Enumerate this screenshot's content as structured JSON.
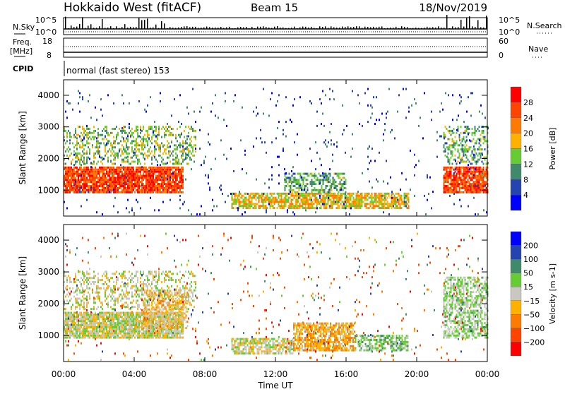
{
  "header": {
    "station": "Hokkaido West (fitACF)",
    "beam": "Beam 15",
    "date": "18/Nov/2019"
  },
  "nsky_panel": {
    "label": "N.Sky",
    "right_label": "N.Search",
    "ticks": [
      "10^5",
      "10^0"
    ],
    "right_ticks": [
      "10^5",
      "10^0"
    ]
  },
  "freq_panel": {
    "label_line1": "Freq.",
    "label_line2": "[MHz]",
    "ticks": [
      "18",
      "8"
    ],
    "right_ticks": [
      "60",
      "0"
    ],
    "right_label": "Nave"
  },
  "cpid": {
    "label": "CPID",
    "value": "normal (fast stereo) 153"
  },
  "chart_data": [
    {
      "type": "heatmap",
      "title": "Power",
      "xlabel": "Time UT",
      "ylabel": "Slant Range [km]",
      "xlim": [
        0,
        24
      ],
      "ylim": [
        180,
        4490
      ],
      "x_ticks": [
        "00:00",
        "04:00",
        "08:00",
        "12:00",
        "16:00",
        "20:00",
        "00:00"
      ],
      "y_ticks": [
        "1000",
        "2000",
        "3000",
        "4000"
      ],
      "colorbar": {
        "label": "Power [dB]",
        "ticks": [
          "4",
          "8",
          "12",
          "16",
          "20",
          "24",
          "28"
        ],
        "colors": [
          "#0000ff",
          "#2444b0",
          "#3f8a6a",
          "#66cc33",
          "#ffb000",
          "#ff7a00",
          "#ff4400",
          "#ff0000"
        ],
        "bins": [
          0,
          4,
          8,
          12,
          16,
          20,
          24,
          28,
          32
        ]
      },
      "echo_regions": [
        {
          "t": [
            0,
            6.8
          ],
          "r": [
            900,
            1700
          ],
          "value": 26,
          "density": 0.9
        },
        {
          "t": [
            0,
            7.5
          ],
          "r": [
            1800,
            3000
          ],
          "value": 14,
          "density": 0.35
        },
        {
          "t": [
            9.5,
            19.5
          ],
          "r": [
            400,
            900
          ],
          "value": 18,
          "density": 0.75
        },
        {
          "t": [
            12.5,
            16
          ],
          "r": [
            900,
            1500
          ],
          "value": 12,
          "density": 0.5
        },
        {
          "t": [
            21.5,
            24
          ],
          "r": [
            900,
            1700
          ],
          "value": 26,
          "density": 0.85
        },
        {
          "t": [
            21.5,
            24
          ],
          "r": [
            1800,
            3000
          ],
          "value": 12,
          "density": 0.35
        },
        {
          "t": [
            0,
            24
          ],
          "r": [
            200,
            4200
          ],
          "value": 6,
          "density": 0.03
        }
      ]
    },
    {
      "type": "heatmap",
      "title": "Velocity",
      "xlabel": "Time UT",
      "ylabel": "Slant Range [km]",
      "xlim": [
        0,
        24
      ],
      "ylim": [
        180,
        4490
      ],
      "x_ticks": [
        "00:00",
        "04:00",
        "08:00",
        "12:00",
        "16:00",
        "20:00",
        "00:00"
      ],
      "y_ticks": [
        "1000",
        "2000",
        "3000",
        "4000"
      ],
      "colorbar": {
        "label": "Velocity [m s-1]",
        "ticks": [
          "200",
          "100",
          "50",
          "15",
          "-15",
          "-50",
          "-100",
          "-200"
        ],
        "colors": [
          "#0000ff",
          "#2444b0",
          "#3f8a6a",
          "#66cc33",
          "#c8c8c0",
          "#ffb000",
          "#ff7a00",
          "#ff4400",
          "#ff0000"
        ]
      },
      "echo_regions": [
        {
          "t": [
            0,
            6.8
          ],
          "r": [
            900,
            1700
          ],
          "value": 0,
          "density": 0.9
        },
        {
          "t": [
            0,
            7.5
          ],
          "r": [
            1800,
            3000
          ],
          "value": 0,
          "density": 0.35
        },
        {
          "t": [
            4.5,
            7
          ],
          "r": [
            1200,
            2400
          ],
          "value": -30,
          "density": 0.5
        },
        {
          "t": [
            9.5,
            13
          ],
          "r": [
            400,
            900
          ],
          "value": 0,
          "density": 0.7
        },
        {
          "t": [
            13,
            16.5
          ],
          "r": [
            500,
            1400
          ],
          "value": -40,
          "density": 0.75
        },
        {
          "t": [
            16.5,
            19.5
          ],
          "r": [
            500,
            1000
          ],
          "value": 30,
          "density": 0.6
        },
        {
          "t": [
            21.5,
            24
          ],
          "r": [
            900,
            2800
          ],
          "value": 20,
          "density": 0.6
        },
        {
          "t": [
            0,
            24
          ],
          "r": [
            200,
            4200
          ],
          "value": -60,
          "density": 0.03
        }
      ]
    }
  ]
}
